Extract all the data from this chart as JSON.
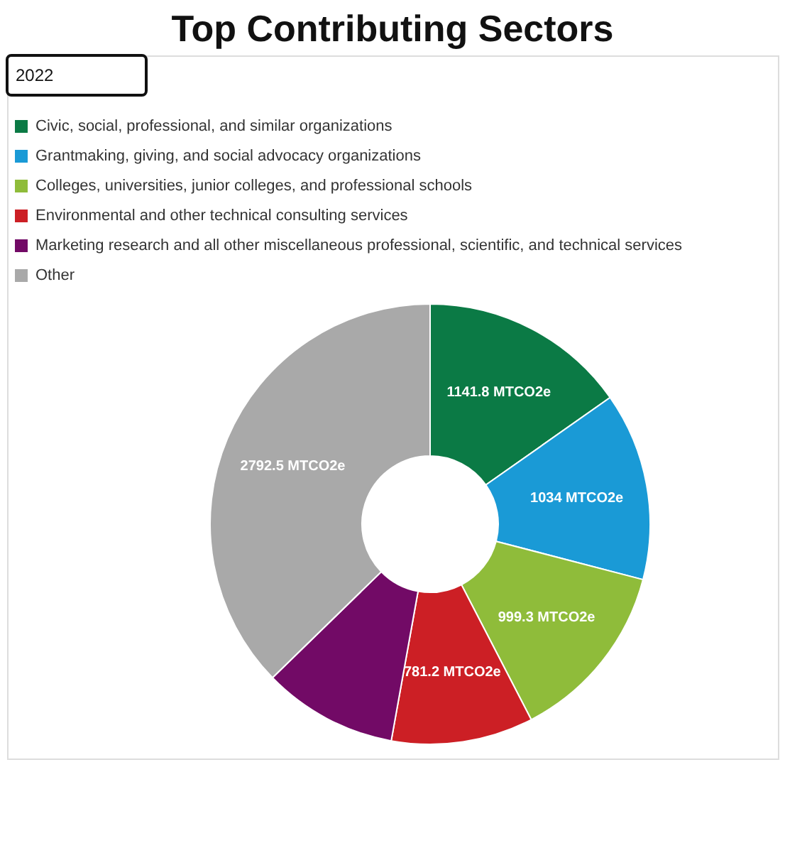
{
  "chart_data": {
    "type": "donut",
    "title": "Top Contributing Sectors",
    "annotations": [
      "2022"
    ],
    "categories": [
      "Civic, social, professional, and similar organizations",
      "Grantmaking, giving, and social advocacy organizations",
      "Colleges, universities, junior colleges, and professional schools",
      "Environmental and other technical consulting services",
      "Marketing research and all other miscellaneous professional, scientific, and technical services",
      "Other"
    ],
    "values": [
      1141.8,
      1034,
      999.3,
      781.2,
      740,
      2792.5
    ],
    "value_labels": [
      "1141.8 MTCO2e",
      "1034 MTCO2e",
      "999.3 MTCO2e",
      "781.2 MTCO2e",
      null,
      "2792.5 MTCO2e"
    ],
    "colors": [
      "#0b7a45",
      "#1a9ad6",
      "#8fbc3a",
      "#cc1f25",
      "#720a66",
      "#a9a9a9"
    ],
    "legend": "top"
  }
}
